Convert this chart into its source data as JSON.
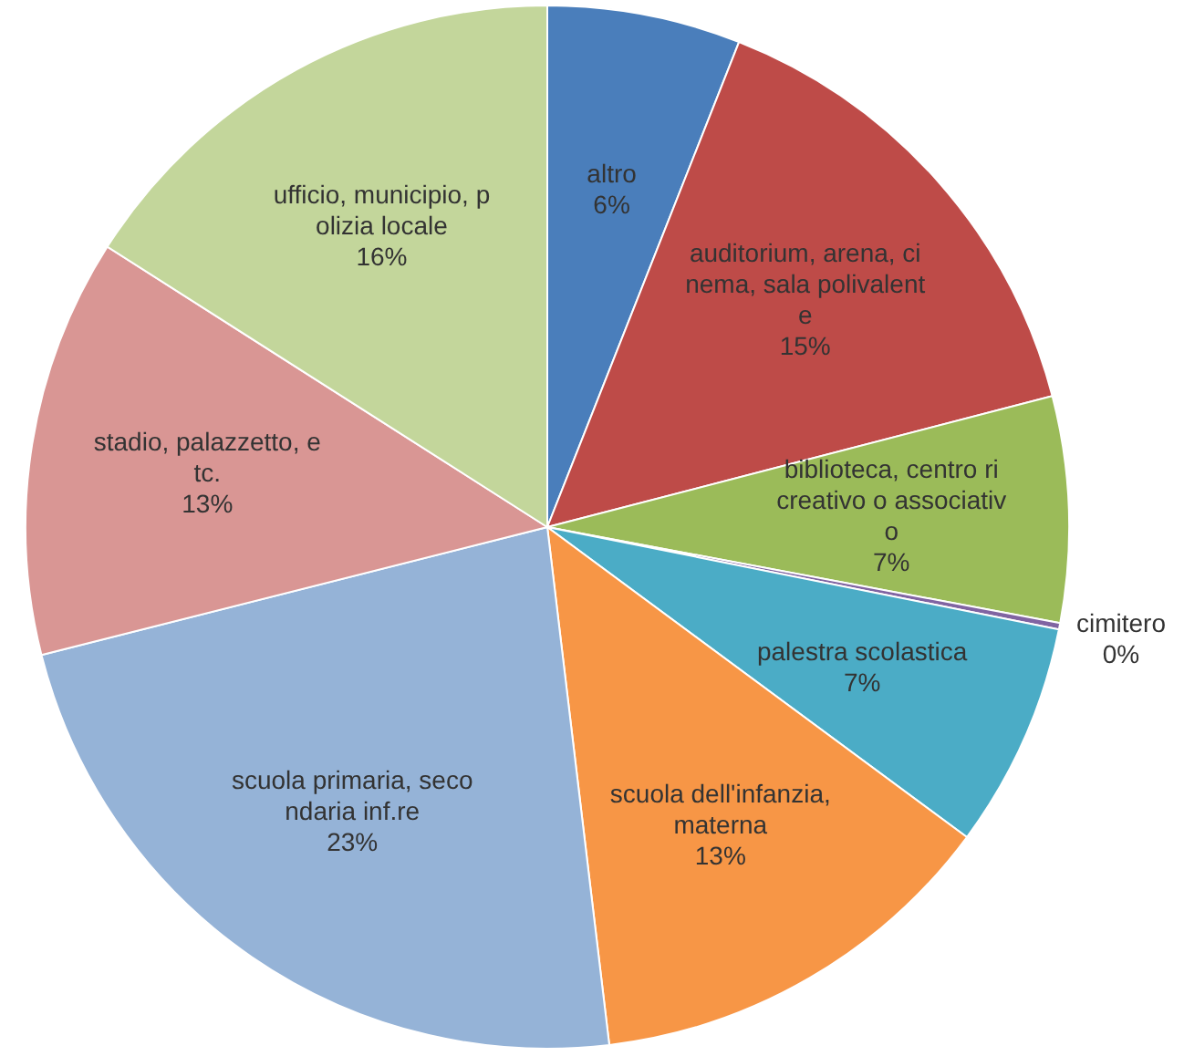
{
  "chart_data": {
    "type": "pie",
    "categories": [
      "altro",
      "auditorium, arena, cinema, sala polivalente",
      "biblioteca, centro ricreativo o associativo",
      "cimitero",
      "palestra scolastica",
      "scuola dell'infanzia, materna",
      "scuola primaria, secondaria inf.re",
      "stadio, palazzetto, etc.",
      "ufficio, municipio, polizia locale"
    ],
    "values": [
      6,
      15,
      7,
      0.2,
      7,
      13,
      23,
      13,
      16
    ],
    "value_labels": [
      "6%",
      "15%",
      "7%",
      "0%",
      "7%",
      "13%",
      "23%",
      "13%",
      "16%"
    ],
    "colors": [
      "#4a7ebb",
      "#be4b48",
      "#9bbb59",
      "#8064a2",
      "#4bacc6",
      "#f79646",
      "#95b3d7",
      "#d99694",
      "#c3d69b"
    ],
    "legend": false
  }
}
